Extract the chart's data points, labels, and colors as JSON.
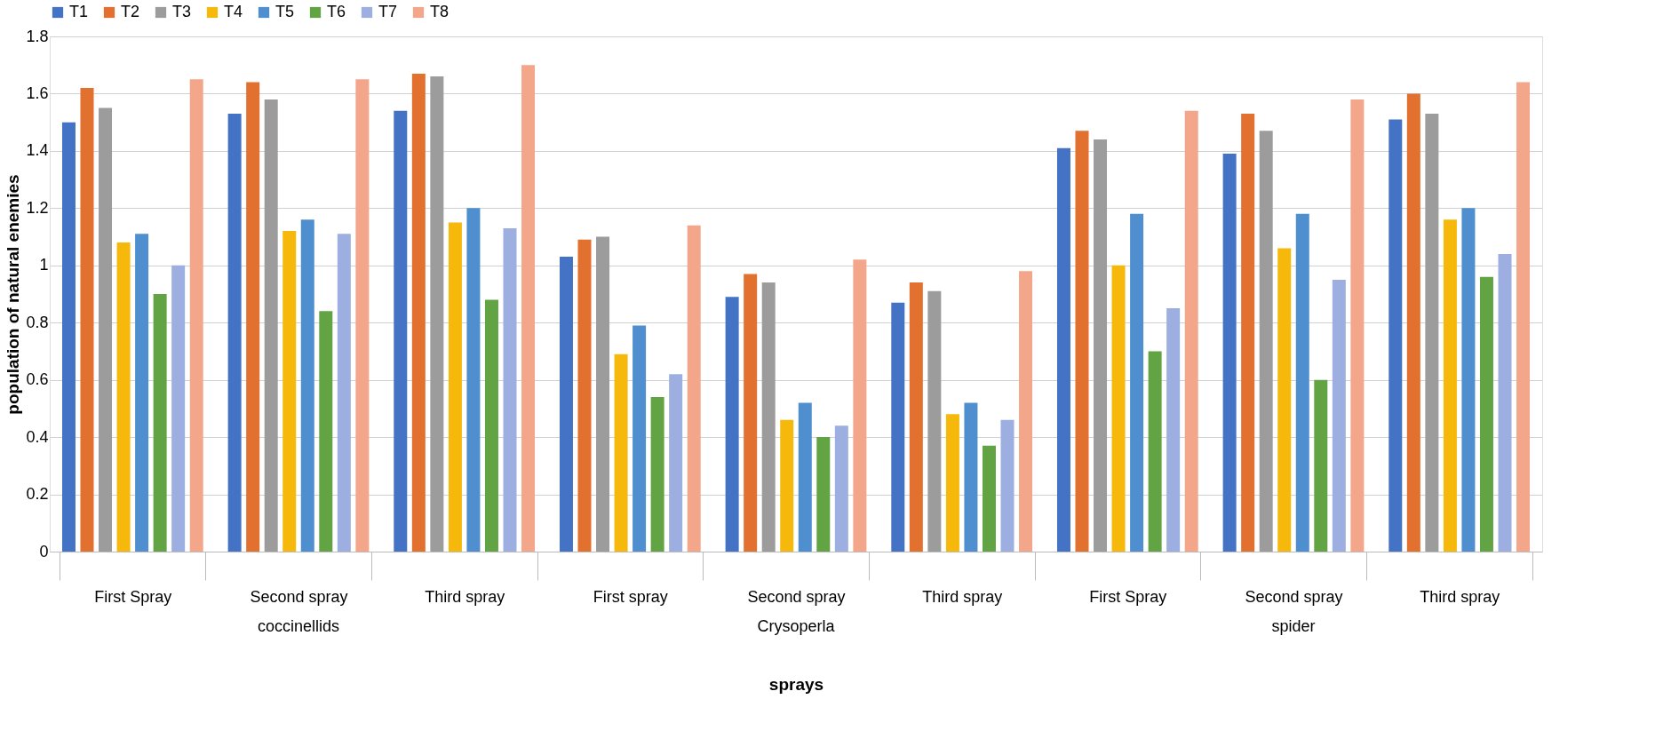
{
  "chart_data": {
    "type": "bar",
    "xlabel": "sprays",
    "ylabel": "population of natural enemies",
    "categories": [
      "First  Spray",
      "Second spray",
      "Third spray",
      "First spray",
      "Second spray",
      "Third spray",
      "First  Spray",
      "Second spray",
      "Third spray"
    ],
    "annotations": [
      "coccinellids",
      "Crysoperla",
      "spider"
    ],
    "series": [
      {
        "name": "T1",
        "color": "#4472c4",
        "values": [
          1.5,
          1.53,
          1.54,
          1.03,
          0.89,
          0.87,
          1.41,
          1.39,
          1.51
        ]
      },
      {
        "name": "T2",
        "color": "#e2702e",
        "values": [
          1.62,
          1.64,
          1.67,
          1.09,
          0.97,
          0.94,
          1.47,
          1.53,
          1.6
        ]
      },
      {
        "name": "T3",
        "color": "#9c9c9c",
        "values": [
          1.55,
          1.58,
          1.66,
          1.1,
          0.94,
          0.91,
          1.44,
          1.47,
          1.53
        ]
      },
      {
        "name": "T4",
        "color": "#f6b80a",
        "values": [
          1.08,
          1.12,
          1.15,
          0.69,
          0.46,
          0.48,
          1.0,
          1.06,
          1.16
        ]
      },
      {
        "name": "T5",
        "color": "#4f8fd0",
        "values": [
          1.11,
          1.16,
          1.2,
          0.79,
          0.52,
          0.52,
          1.18,
          1.18,
          1.2
        ]
      },
      {
        "name": "T6",
        "color": "#62a444",
        "values": [
          0.9,
          0.84,
          0.88,
          0.54,
          0.4,
          0.37,
          0.7,
          0.6,
          0.96
        ]
      },
      {
        "name": "T7",
        "color": "#9dafe0",
        "values": [
          1.0,
          1.11,
          1.13,
          0.62,
          0.44,
          0.46,
          0.85,
          0.95,
          1.04
        ]
      },
      {
        "name": "T8",
        "color": "#f4a68b",
        "values": [
          1.65,
          1.65,
          1.7,
          1.14,
          1.02,
          0.98,
          1.54,
          1.58,
          1.64
        ]
      }
    ],
    "ylim": [
      0,
      1.8
    ],
    "yticks": [
      0,
      0.2,
      0.4,
      0.6,
      0.8,
      {
        "value": 1.0,
        "label": "1"
      },
      1.2,
      1.4,
      1.6,
      1.8
    ],
    "grid": "y",
    "legend": "top"
  }
}
